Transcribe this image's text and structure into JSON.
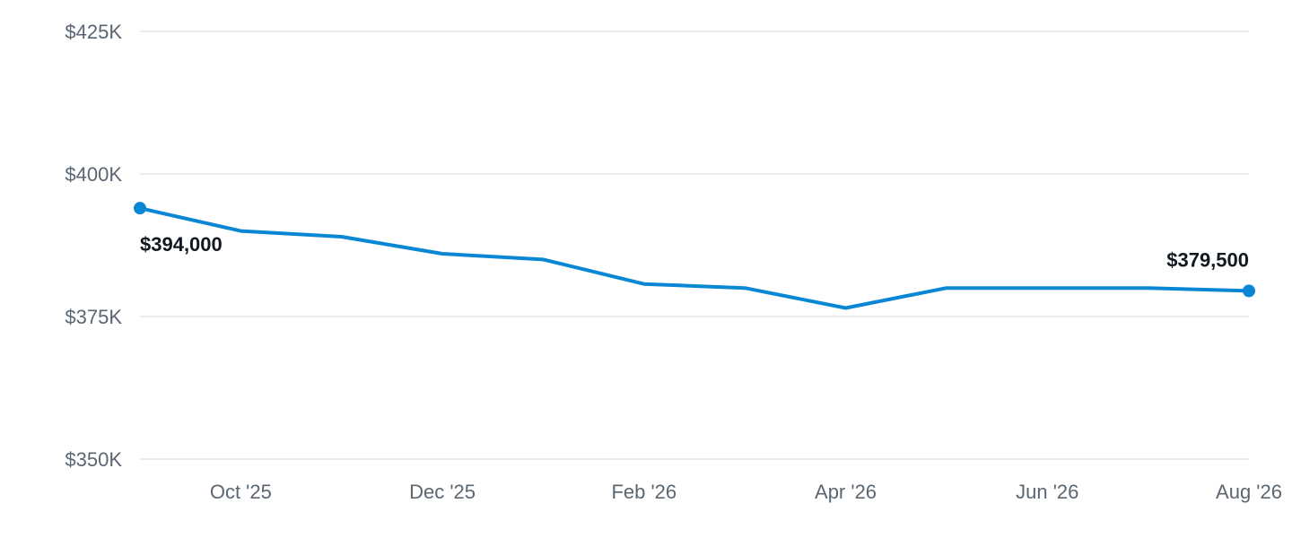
{
  "colors": {
    "series": "#0a87d4",
    "grid": "#e3e6ea",
    "tick_text": "#5b6673",
    "label_text": "#111820"
  },
  "chart_data": {
    "type": "line",
    "x": [
      "2025-09",
      "2025-10",
      "2025-11",
      "2025-12",
      "2026-01",
      "2026-02",
      "2026-03",
      "2026-04",
      "2026-05",
      "2026-06",
      "2026-07",
      "2026-08"
    ],
    "series": [
      {
        "values": [
          394000,
          390000,
          389000,
          386000,
          385000,
          380700,
          380000,
          376500,
          380000,
          380000,
          380000,
          379500
        ]
      }
    ],
    "ylim": [
      350000,
      425000
    ],
    "y_ticks": [
      350000,
      375000,
      400000,
      425000
    ],
    "y_tick_labels": [
      "$350K",
      "$375K",
      "$400K",
      "$425K"
    ],
    "x_tick_labels": [
      "Oct '25",
      "Dec '25",
      "Feb '26",
      "Apr '26",
      "Jun '26",
      "Aug '26"
    ],
    "x_tick_months": [
      "2025-10",
      "2025-12",
      "2026-02",
      "2026-04",
      "2026-06",
      "2026-08"
    ],
    "data_labels": [
      {
        "x": "2025-09",
        "text": "$394,000",
        "position": "below"
      },
      {
        "x": "2026-08",
        "text": "$379,500",
        "position": "above"
      }
    ],
    "grid": true,
    "title": "",
    "xlabel": "",
    "ylabel": ""
  }
}
